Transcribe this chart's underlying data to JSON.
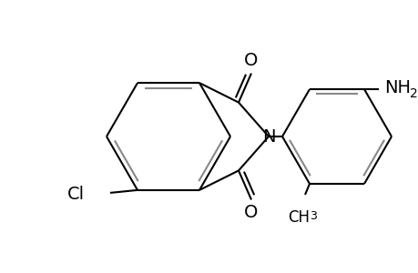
{
  "bg_color": "#ffffff",
  "bond_color": "#000000",
  "bond_width": 1.5,
  "double_bond_color": "#888888",
  "figsize": [
    4.6,
    3.0
  ],
  "dpi": 100,
  "xlim": [
    0,
    460
  ],
  "ylim": [
    0,
    300
  ]
}
